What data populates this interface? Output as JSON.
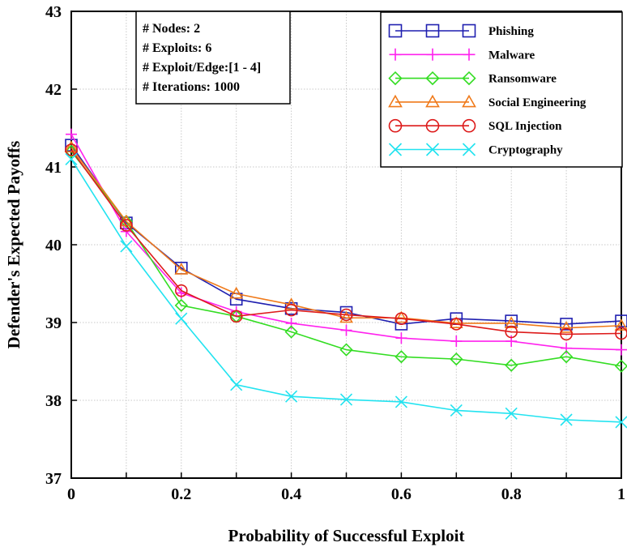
{
  "chart_data": {
    "type": "line",
    "xlabel": "Probability of Successful Exploit",
    "ylabel": "Defender's Expected Payoffs",
    "xlim": [
      0,
      1
    ],
    "ylim": [
      37,
      43
    ],
    "x": [
      0,
      0.1,
      0.2,
      0.3,
      0.4,
      0.5,
      0.6,
      0.7,
      0.8,
      0.9,
      1
    ],
    "x_tick_labels": [
      "0",
      "0.2",
      "0.4",
      "0.6",
      "0.8",
      "1"
    ],
    "x_tick_values": [
      0,
      0.2,
      0.4,
      0.6,
      0.8,
      1
    ],
    "y_tick_labels": [
      "37",
      "38",
      "39",
      "40",
      "41",
      "42",
      "43"
    ],
    "y_tick_values": [
      37,
      38,
      39,
      40,
      41,
      42,
      43
    ],
    "grid": true,
    "legend_position": "top-right",
    "annotation": {
      "lines": [
        "# Nodes: 2",
        "# Exploits: 6",
        "# Exploit/Edge:[1 - 4]",
        "# Iterations: 1000"
      ]
    },
    "series": [
      {
        "name": "Phishing",
        "color": "#1f1fb0",
        "marker": "square",
        "values": [
          41.28,
          40.28,
          39.7,
          39.3,
          39.18,
          39.13,
          38.98,
          39.05,
          39.02,
          38.98,
          39.02
        ]
      },
      {
        "name": "Malware",
        "color": "#ff22ee",
        "marker": "plus",
        "values": [
          41.42,
          40.17,
          39.38,
          39.14,
          38.99,
          38.9,
          38.8,
          38.76,
          38.76,
          38.67,
          38.65
        ]
      },
      {
        "name": "Ransomware",
        "color": "#33dd22",
        "marker": "diamond",
        "values": [
          41.2,
          40.3,
          39.22,
          39.08,
          38.88,
          38.65,
          38.56,
          38.53,
          38.45,
          38.56,
          38.44
        ]
      },
      {
        "name": "Social Engineering",
        "color": "#f07a1a",
        "marker": "triangle",
        "values": [
          41.25,
          40.3,
          39.68,
          39.37,
          39.23,
          39.06,
          39.06,
          38.99,
          38.99,
          38.93,
          38.96
        ]
      },
      {
        "name": "SQL Injection",
        "color": "#dd1a1a",
        "marker": "circle",
        "values": [
          41.22,
          40.25,
          39.41,
          39.08,
          39.16,
          39.1,
          39.05,
          38.98,
          38.88,
          38.85,
          38.86
        ]
      },
      {
        "name": "Cryptography",
        "color": "#22e3f0",
        "marker": "x",
        "values": [
          41.1,
          39.98,
          39.05,
          38.2,
          38.05,
          38.01,
          37.98,
          37.87,
          37.83,
          37.75,
          37.72
        ]
      }
    ]
  }
}
